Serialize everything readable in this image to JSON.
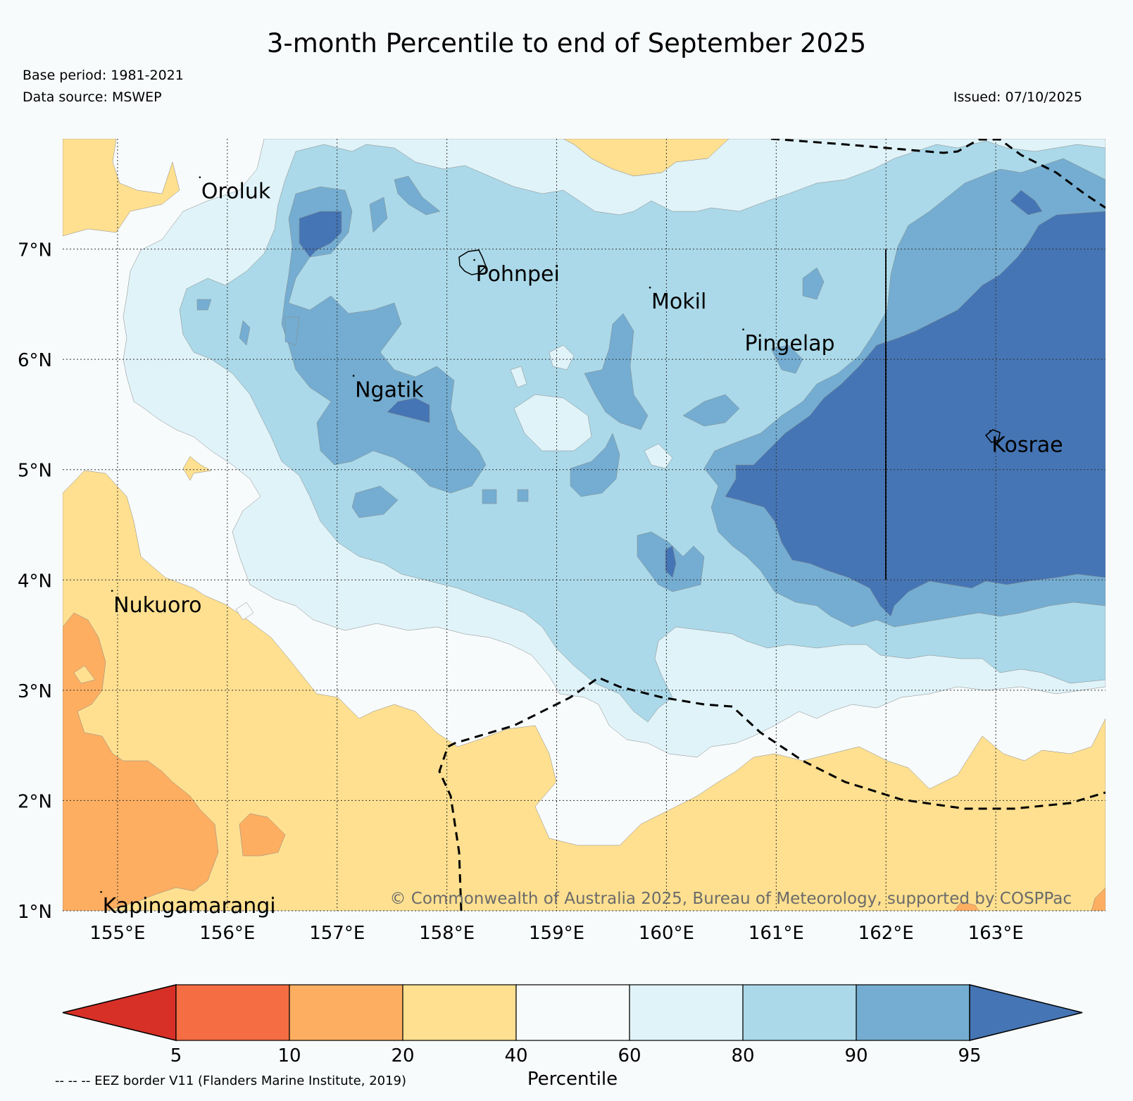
{
  "title": "3-month Percentile to end of September 2025",
  "base_period": "Base period: 1981-2021",
  "data_source": "Data source: MSWEP",
  "issued": "Issued: 07/10/2025",
  "copyright": "© Commonwealth of Australia 2025, Bureau of Meteorology, supported by COSPPac",
  "eez_note": "-- -- -- EEZ border V11 (Flanders Marine Institute, 2019)",
  "map": {
    "lon_range": [
      154.5,
      164.0
    ],
    "lat_range": [
      1.0,
      8.0
    ],
    "lon_ticks": [
      155,
      156,
      157,
      158,
      159,
      160,
      161,
      162,
      163
    ],
    "lon_tick_labels": [
      "155°E",
      "156°E",
      "157°E",
      "158°E",
      "159°E",
      "160°E",
      "161°E",
      "162°E",
      "163°E"
    ],
    "lat_ticks": [
      1,
      2,
      3,
      4,
      5,
      6,
      7
    ],
    "lat_tick_labels": [
      "1°N",
      "2°N",
      "3°N",
      "4°N",
      "5°N",
      "6°N",
      "7°N"
    ],
    "islands": [
      {
        "name": "Oroluk",
        "lon": 155.75,
        "lat": 7.6
      },
      {
        "name": "Pohnpei",
        "lon": 158.25,
        "lat": 6.85
      },
      {
        "name": "Mokil",
        "lon": 159.85,
        "lat": 6.6
      },
      {
        "name": "Pingelap",
        "lon": 160.7,
        "lat": 6.22
      },
      {
        "name": "Ngatik",
        "lon": 157.15,
        "lat": 5.8
      },
      {
        "name": "Kosrae",
        "lon": 162.95,
        "lat": 5.3
      },
      {
        "name": "Nukuoro",
        "lon": 154.95,
        "lat": 3.85
      },
      {
        "name": "Kapingamarangi",
        "lon": 154.85,
        "lat": 1.12
      }
    ]
  },
  "colorbar": {
    "label": "Percentile",
    "boundaries": [
      "5",
      "10",
      "20",
      "40",
      "60",
      "80",
      "90",
      "95"
    ],
    "colors": [
      "#d73027",
      "#f46d43",
      "#fdae61",
      "#fee090",
      "#f8fbfc",
      "#e0f3f8",
      "#abd9e9",
      "#74add1",
      "#4575b4"
    ]
  }
}
